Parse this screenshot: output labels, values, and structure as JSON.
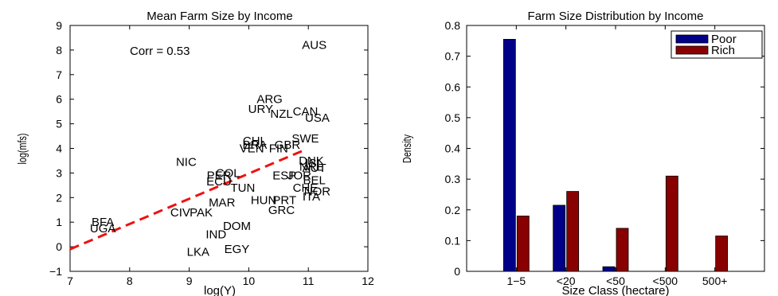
{
  "chart_data": [
    {
      "type": "scatter",
      "title": "Mean Farm Size by Income",
      "xlabel": "log(Y)",
      "ylabel": "log(mfs)",
      "xlim": [
        7,
        12
      ],
      "ylim": [
        -1,
        9
      ],
      "xticks": [
        "7",
        "8",
        "9",
        "10",
        "11",
        "12"
      ],
      "yticks": [
        "−1",
        "0",
        "1",
        "2",
        "3",
        "4",
        "5",
        "6",
        "7",
        "8",
        "9"
      ],
      "annotation": "Corr = 0.53",
      "fit_line": {
        "x": [
          7.0,
          10.95
        ],
        "y": [
          -0.1,
          3.95
        ],
        "color": "#ee1111",
        "style": "dashed"
      },
      "points": [
        {
          "label": "AUS",
          "x": 11.1,
          "y": 8.2
        },
        {
          "label": "ARG",
          "x": 10.35,
          "y": 6.0
        },
        {
          "label": "URY",
          "x": 10.2,
          "y": 5.6
        },
        {
          "label": "CAN",
          "x": 10.95,
          "y": 5.5
        },
        {
          "label": "NZL",
          "x": 10.55,
          "y": 5.4
        },
        {
          "label": "USA",
          "x": 11.15,
          "y": 5.25
        },
        {
          "label": "SWE",
          "x": 10.95,
          "y": 4.4
        },
        {
          "label": "CHL",
          "x": 10.1,
          "y": 4.3
        },
        {
          "label": "BRA",
          "x": 10.1,
          "y": 4.15
        },
        {
          "label": "GBR",
          "x": 10.65,
          "y": 4.15
        },
        {
          "label": "VEN",
          "x": 10.05,
          "y": 4.0
        },
        {
          "label": "FIN",
          "x": 10.5,
          "y": 4.0
        },
        {
          "label": "NIC",
          "x": 8.95,
          "y": 3.45
        },
        {
          "label": "DNK",
          "x": 11.05,
          "y": 3.5
        },
        {
          "label": "ISL",
          "x": 11.1,
          "y": 3.4
        },
        {
          "label": "NRL",
          "x": 11.05,
          "y": 3.25
        },
        {
          "label": "AUT",
          "x": 11.1,
          "y": 3.2
        },
        {
          "label": "COL",
          "x": 9.65,
          "y": 3.0
        },
        {
          "label": "PER",
          "x": 9.5,
          "y": 2.9
        },
        {
          "label": "ECU",
          "x": 9.5,
          "y": 2.65
        },
        {
          "label": "ESP",
          "x": 10.6,
          "y": 2.9
        },
        {
          "label": "JOR",
          "x": 10.85,
          "y": 2.9
        },
        {
          "label": "BEL",
          "x": 11.1,
          "y": 2.7
        },
        {
          "label": "TUN",
          "x": 9.9,
          "y": 2.4
        },
        {
          "label": "CHE",
          "x": 10.95,
          "y": 2.4
        },
        {
          "label": "NOR",
          "x": 11.15,
          "y": 2.25
        },
        {
          "label": "ITA",
          "x": 11.05,
          "y": 2.05
        },
        {
          "label": "MAR",
          "x": 9.55,
          "y": 1.8
        },
        {
          "label": "HUN",
          "x": 10.25,
          "y": 1.9
        },
        {
          "label": "PRT",
          "x": 10.6,
          "y": 1.9
        },
        {
          "label": "GRC",
          "x": 10.55,
          "y": 1.5
        },
        {
          "label": "CIV",
          "x": 8.85,
          "y": 1.4
        },
        {
          "label": "PAK",
          "x": 9.2,
          "y": 1.4
        },
        {
          "label": "BFA",
          "x": 7.55,
          "y": 1.0
        },
        {
          "label": "UGA",
          "x": 7.55,
          "y": 0.75
        },
        {
          "label": "DOM",
          "x": 9.8,
          "y": 0.85
        },
        {
          "label": "IND",
          "x": 9.45,
          "y": 0.5
        },
        {
          "label": "EGY",
          "x": 9.8,
          "y": -0.1
        },
        {
          "label": "LKA",
          "x": 9.15,
          "y": -0.2
        }
      ]
    },
    {
      "type": "bar",
      "title": "Farm Size Distribution by Income",
      "xlabel": "Size Class (hectare)",
      "ylabel": "Density",
      "ylim": [
        0,
        0.8
      ],
      "yticks": [
        "0",
        "0.1",
        "0.2",
        "0.3",
        "0.4",
        "0.5",
        "0.6",
        "0.7",
        "0.8"
      ],
      "categories": [
        "1−5",
        "<20",
        "<50",
        "<500",
        "500+"
      ],
      "legend_position": "top-right",
      "series": [
        {
          "name": "Poor",
          "color": "#000088",
          "values": [
            0.755,
            0.215,
            0.015,
            0.0,
            0.0
          ]
        },
        {
          "name": "Rich",
          "color": "#880000",
          "values": [
            0.18,
            0.26,
            0.14,
            0.31,
            0.115
          ]
        }
      ]
    }
  ]
}
